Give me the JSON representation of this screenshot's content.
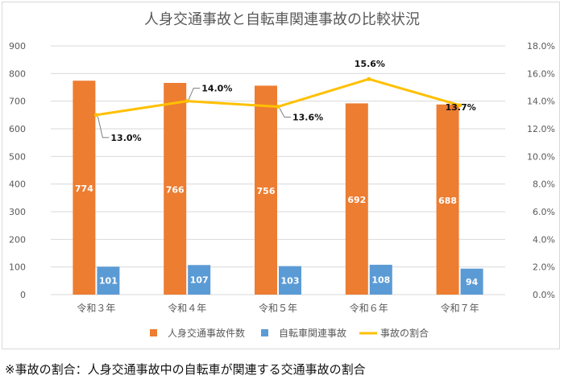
{
  "chart_data": {
    "type": "bar",
    "title": "人身交通事故と自転車関連事故の比較状況",
    "categories": [
      "令和３年",
      "令和４年",
      "令和５年",
      "令和６年",
      "令和７年"
    ],
    "series": [
      {
        "name": "人身交通事故件数",
        "type": "bar",
        "axis": "left",
        "color": "#ed7d31",
        "values": [
          774,
          766,
          756,
          692,
          688
        ],
        "labels": [
          "774",
          "766",
          "756",
          "692",
          "688"
        ]
      },
      {
        "name": "自転車関連事故",
        "type": "bar",
        "axis": "left",
        "color": "#5b9bd5",
        "values": [
          101,
          107,
          103,
          108,
          94
        ],
        "labels": [
          "101",
          "107",
          "103",
          "108",
          "94"
        ]
      },
      {
        "name": "事故の割合",
        "type": "line",
        "axis": "right",
        "color": "#ffc000",
        "values": [
          13.0,
          14.0,
          13.6,
          15.6,
          13.7
        ],
        "labels": [
          "13.0%",
          "14.0%",
          "13.6%",
          "15.6%",
          "13.7%"
        ]
      }
    ],
    "y_left": {
      "min": 0,
      "max": 900,
      "step": 100,
      "ticks": [
        "0",
        "100",
        "200",
        "300",
        "400",
        "500",
        "600",
        "700",
        "800",
        "900"
      ]
    },
    "y_right": {
      "min": 0,
      "max": 18,
      "step": 2,
      "ticks": [
        "0.0%",
        "2.0%",
        "4.0%",
        "6.0%",
        "8.0%",
        "10.0%",
        "12.0%",
        "14.0%",
        "16.0%",
        "18.0%"
      ]
    },
    "grid": true,
    "legend_position": "bottom"
  },
  "footnote": "※事故の割合：人身交通事故中の自転車が関連する交通事故の割合"
}
